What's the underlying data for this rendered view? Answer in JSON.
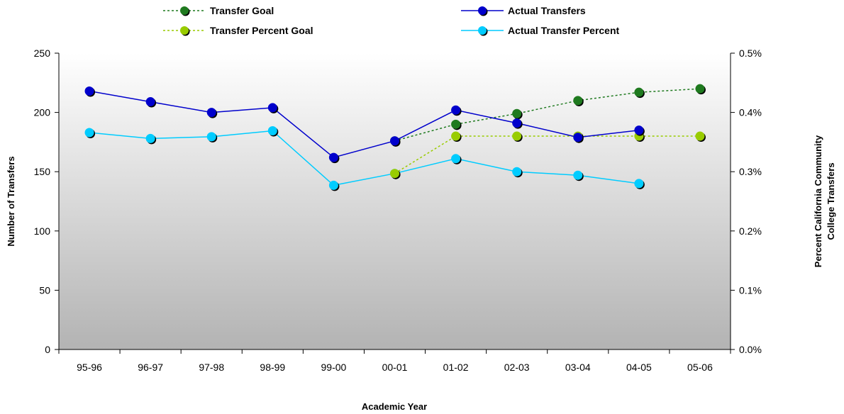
{
  "chart_data": {
    "type": "line",
    "categories": [
      "95-96",
      "96-97",
      "97-98",
      "98-99",
      "99-00",
      "00-01",
      "01-02",
      "02-03",
      "03-04",
      "04-05",
      "05-06"
    ],
    "xlabel": "Academic Year",
    "ylabel": "Number of Transfers",
    "y2label_line1": "Percent California Community",
    "y2label_line2": "College Transfers",
    "ylim": [
      0,
      250
    ],
    "yticks": [
      0,
      50,
      100,
      150,
      200,
      250
    ],
    "y2lim": [
      0.0,
      0.5
    ],
    "y2ticks": [
      "0.0%",
      "0.1%",
      "0.2%",
      "0.3%",
      "0.4%",
      "0.5%"
    ],
    "grid": false,
    "legend_position": "top",
    "series": [
      {
        "name": "Transfer Goal",
        "axis": "left",
        "style": "dotted",
        "color": "#1f7a1f",
        "values": [
          null,
          null,
          null,
          null,
          null,
          176,
          190,
          199,
          210,
          217,
          220
        ]
      },
      {
        "name": "Actual Transfers",
        "axis": "left",
        "style": "solid",
        "color": "#0000cc",
        "values": [
          218,
          209,
          200,
          204,
          162,
          176,
          202,
          191,
          179,
          185,
          null
        ]
      },
      {
        "name": "Transfer Percent Goal",
        "axis": "right",
        "style": "dotted",
        "color": "#99cc00",
        "values": [
          null,
          null,
          null,
          null,
          null,
          0.297,
          0.36,
          0.36,
          0.36,
          0.36,
          0.36
        ]
      },
      {
        "name": "Actual Transfer Percent",
        "axis": "right",
        "style": "solid",
        "color": "#00ccff",
        "values": [
          0.366,
          0.356,
          0.359,
          0.369,
          0.277,
          0.297,
          0.322,
          0.3,
          0.294,
          0.28,
          null
        ]
      }
    ]
  },
  "colors": {
    "plot_gradient_top": "#ffffff",
    "plot_gradient_bottom": "#b3b3b3",
    "axis": "#000000",
    "marker_shadow": "#000000"
  }
}
